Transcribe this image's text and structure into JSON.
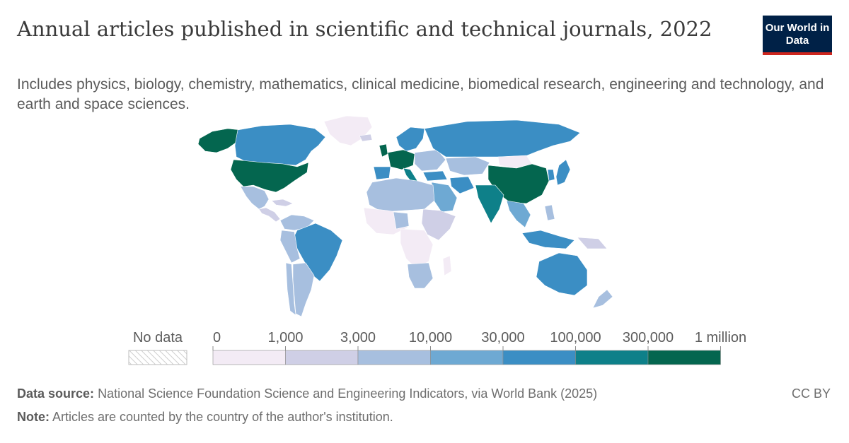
{
  "header": {
    "title": "Annual articles published in scientific and technical journals, 2022",
    "subtitle": "Includes physics, biology, chemistry, mathematics, clinical medicine, biomedical research, engineering and technology, and earth and space sciences.",
    "logo": "Our World in Data"
  },
  "legend": {
    "no_data_label": "No data",
    "ticks": [
      "0",
      "1,000",
      "3,000",
      "10,000",
      "30,000",
      "100,000",
      "300,000",
      "1 million"
    ],
    "colors": [
      "#f3ebf5",
      "#cfcfe6",
      "#a7bfdf",
      "#6ea9d3",
      "#3b8ec4",
      "#0e8089",
      "#04664f"
    ]
  },
  "map_colors": {
    "lightest": "#f3ebf5",
    "light": "#cfcfe6",
    "mid_light": "#a7bfdf",
    "mid": "#6ea9d3",
    "mid_dark": "#3b8ec4",
    "teal": "#0e8089",
    "darkest": "#04664f"
  },
  "footer": {
    "source_label": "Data source:",
    "source_text": "National Science Foundation Science and Engineering Indicators, via World Bank (2025)",
    "note_label": "Note:",
    "note_text": "Articles are counted by the country of the author's institution.",
    "license": "CC BY"
  }
}
